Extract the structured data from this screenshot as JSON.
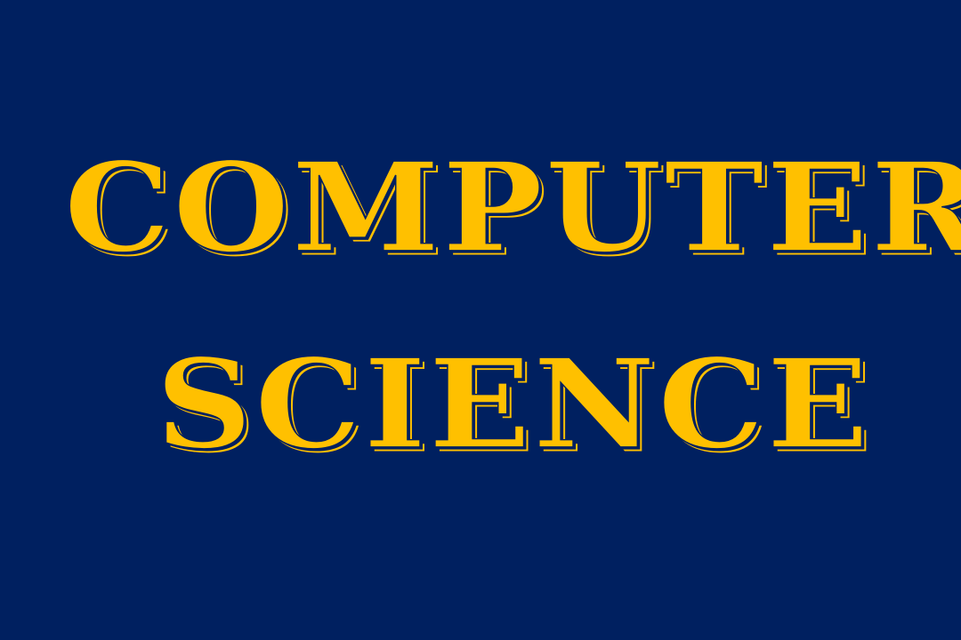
{
  "colors": {
    "background": "#002060",
    "text": "#FFC000"
  },
  "title": {
    "line1": "COMPUTER",
    "line2": "SCIENCE"
  }
}
